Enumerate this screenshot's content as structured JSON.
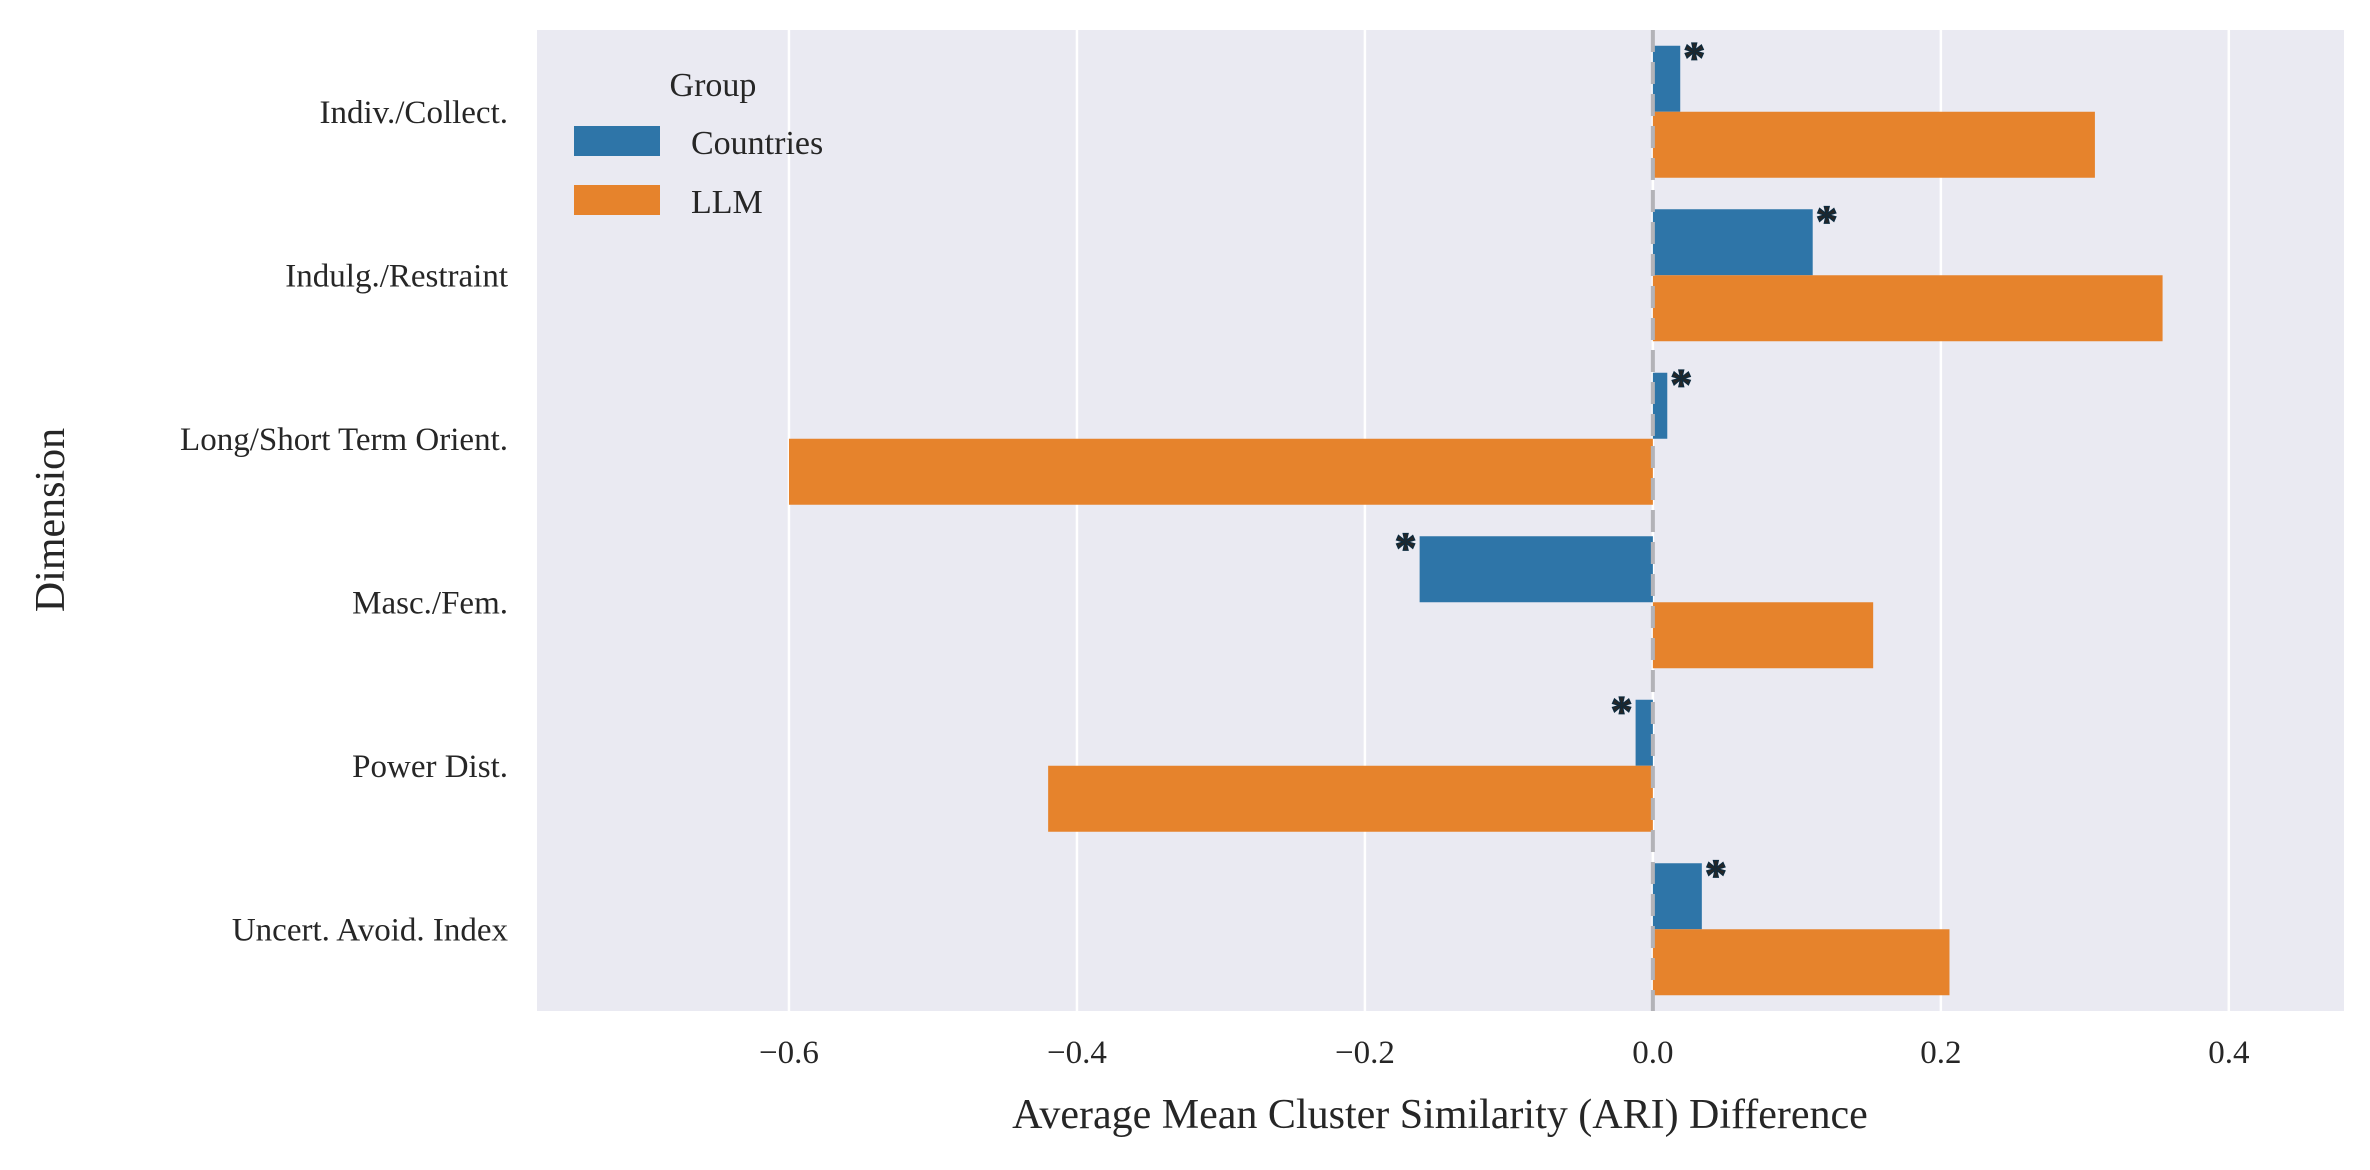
{
  "chart_data": {
    "type": "bar",
    "orientation": "horizontal",
    "title": "",
    "xlabel": "Average Mean Cluster Similarity (ARI) Difference",
    "ylabel": "Dimension",
    "categories": [
      "Indiv./Collect.",
      "Indulg./Restraint",
      "Long/Short Term Orient.",
      "Masc./Fem.",
      "Power Dist.",
      "Uncert. Avoid. Index"
    ],
    "series": [
      {
        "name": "Countries",
        "color": "#2e75a8",
        "values": [
          0.019,
          0.111,
          0.01,
          -0.162,
          -0.012,
          0.034
        ],
        "significant": [
          true,
          true,
          true,
          true,
          true,
          true
        ]
      },
      {
        "name": "LLM",
        "color": "#e6832c",
        "values": [
          0.307,
          0.354,
          -0.6,
          0.153,
          -0.42,
          0.206
        ]
      }
    ],
    "xlim": [
      -0.775,
      0.48
    ],
    "xticks": [
      -0.6,
      -0.4,
      -0.2,
      0.0,
      0.2,
      0.4
    ],
    "xtick_labels": [
      "−0.6",
      "−0.4",
      "−0.2",
      "0.0",
      "0.2",
      "0.4"
    ],
    "reference_line": 0.0,
    "significance_marker": "*",
    "legend": {
      "title": "Group",
      "position": "top-left",
      "entries": [
        "Countries",
        "LLM"
      ]
    },
    "grid": true,
    "background": "#eaeaf2"
  }
}
